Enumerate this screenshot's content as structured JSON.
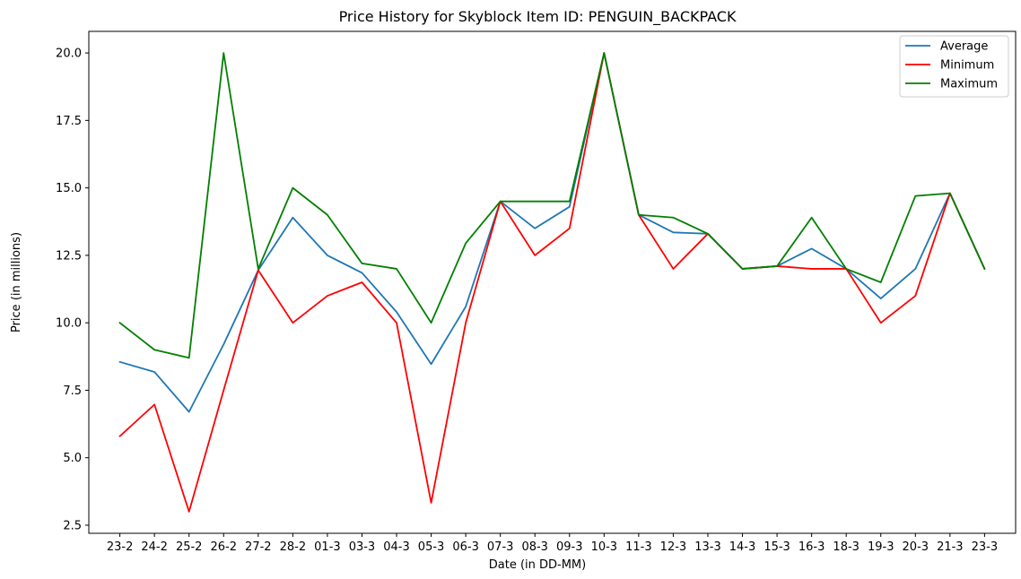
{
  "chart_data": {
    "type": "line",
    "title": "Price History for Skyblock Item ID: PENGUIN_BACKPACK",
    "xlabel": "Date (in DD-MM)",
    "ylabel": "Price (in millions)",
    "categories": [
      "23-2",
      "24-2",
      "25-2",
      "26-2",
      "27-2",
      "28-2",
      "01-3",
      "03-3",
      "04-3",
      "05-3",
      "06-3",
      "07-3",
      "08-3",
      "09-3",
      "10-3",
      "11-3",
      "12-3",
      "13-3",
      "14-3",
      "15-3",
      "16-3",
      "18-3",
      "19-3",
      "20-3",
      "21-3",
      "23-3"
    ],
    "ylim": [
      2.2,
      20.8
    ],
    "yticks": [
      "2.5",
      "5.0",
      "7.5",
      "10.0",
      "12.5",
      "15.0",
      "17.5",
      "20.0"
    ],
    "grid": false,
    "legend_position": "top-right",
    "series": [
      {
        "name": "Average",
        "color": "#1f77b4",
        "values": [
          8.55,
          8.18,
          6.7,
          9.2,
          11.95,
          13.9,
          12.5,
          11.85,
          10.4,
          8.47,
          10.6,
          14.5,
          13.5,
          14.3,
          20.0,
          14.0,
          13.35,
          13.3,
          12.0,
          12.1,
          12.75,
          12.0,
          10.9,
          12.0,
          14.8,
          12.0
        ]
      },
      {
        "name": "Minimum",
        "color": "#ff0000",
        "values": [
          5.8,
          6.97,
          3.0,
          7.5,
          11.95,
          10.0,
          11.0,
          11.5,
          10.0,
          3.33,
          10.0,
          14.5,
          12.5,
          13.5,
          20.0,
          14.0,
          12.0,
          13.3,
          12.0,
          12.1,
          12.0,
          12.0,
          10.0,
          11.0,
          14.8,
          12.0
        ]
      },
      {
        "name": "Maximum",
        "color": "#008000",
        "values": [
          10.0,
          9.0,
          8.7,
          20.0,
          12.0,
          15.0,
          14.0,
          12.2,
          12.0,
          10.0,
          12.95,
          14.5,
          14.5,
          14.5,
          20.0,
          14.0,
          13.9,
          13.3,
          12.0,
          12.1,
          13.9,
          12.0,
          11.5,
          14.7,
          14.8,
          12.0
        ]
      }
    ]
  }
}
